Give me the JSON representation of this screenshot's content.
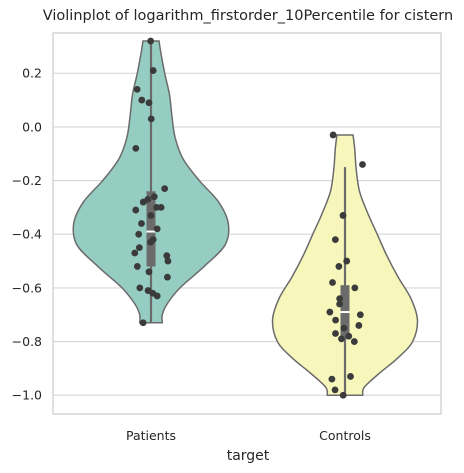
{
  "chart_data": {
    "type": "violin",
    "title": "Violinplot of logarithm_firstorder_10Percentile for cistern",
    "xlabel": "target",
    "ylabel": "",
    "categories": [
      "Patients",
      "Controls"
    ],
    "ylim": [
      -1.07,
      0.35
    ],
    "yticks": [
      0.2,
      0.0,
      -0.2,
      -0.4,
      -0.6,
      -0.8,
      -1.0
    ],
    "ytick_labels": [
      "0.2",
      "0.0",
      "−0.2",
      "−0.4",
      "−0.6",
      "−0.8",
      "−1.0"
    ],
    "grid": "y",
    "colors": {
      "Patients": "#96cdc2",
      "Controls": "#f7f7bb",
      "outline": "#6b6b6b",
      "points": "#3b3b3b",
      "box": "#6b6b6b",
      "grid": "#d6d6d6",
      "median": "#ffffff"
    },
    "series": [
      {
        "name": "Patients",
        "points": [
          0.32,
          0.21,
          0.14,
          0.1,
          0.09,
          0.03,
          -0.08,
          -0.23,
          -0.26,
          -0.27,
          -0.28,
          -0.3,
          -0.3,
          -0.31,
          -0.33,
          -0.36,
          -0.38,
          -0.4,
          -0.42,
          -0.43,
          -0.45,
          -0.47,
          -0.48,
          -0.5,
          -0.52,
          -0.54,
          -0.56,
          -0.6,
          -0.61,
          -0.62,
          -0.63,
          -0.73
        ],
        "box": {
          "q1": -0.52,
          "median": -0.39,
          "q3": -0.24,
          "whisker_low": -0.73,
          "whisker_high": 0.32
        },
        "violin": {
          "y": [
            0.32,
            0.28,
            0.2,
            0.12,
            0.04,
            -0.04,
            -0.12,
            -0.2,
            -0.28,
            -0.36,
            -0.44,
            -0.52,
            -0.6,
            -0.66,
            -0.7,
            -0.73
          ],
          "half_width": [
            0.05,
            0.06,
            0.085,
            0.115,
            0.13,
            0.15,
            0.2,
            0.3,
            0.42,
            0.48,
            0.46,
            0.33,
            0.18,
            0.1,
            0.07,
            0.07
          ]
        }
      },
      {
        "name": "Controls",
        "points": [
          -0.03,
          -0.14,
          -0.33,
          -0.42,
          -0.5,
          -0.52,
          -0.58,
          -0.6,
          -0.64,
          -0.66,
          -0.69,
          -0.7,
          -0.72,
          -0.74,
          -0.75,
          -0.77,
          -0.78,
          -0.79,
          -0.8,
          -0.93,
          -0.94,
          -0.98,
          -1.0
        ],
        "box": {
          "q1": -0.79,
          "median": -0.69,
          "q3": -0.59,
          "whisker_low": -1.0,
          "whisker_high": -0.15
        },
        "violin": {
          "y": [
            -0.03,
            -0.08,
            -0.16,
            -0.24,
            -0.32,
            -0.4,
            -0.48,
            -0.56,
            -0.64,
            -0.72,
            -0.8,
            -0.86,
            -0.92,
            -0.97,
            -1.0
          ],
          "half_width": [
            0.05,
            0.06,
            0.07,
            0.09,
            0.14,
            0.2,
            0.26,
            0.33,
            0.41,
            0.45,
            0.42,
            0.33,
            0.21,
            0.12,
            0.11
          ]
        }
      }
    ]
  }
}
